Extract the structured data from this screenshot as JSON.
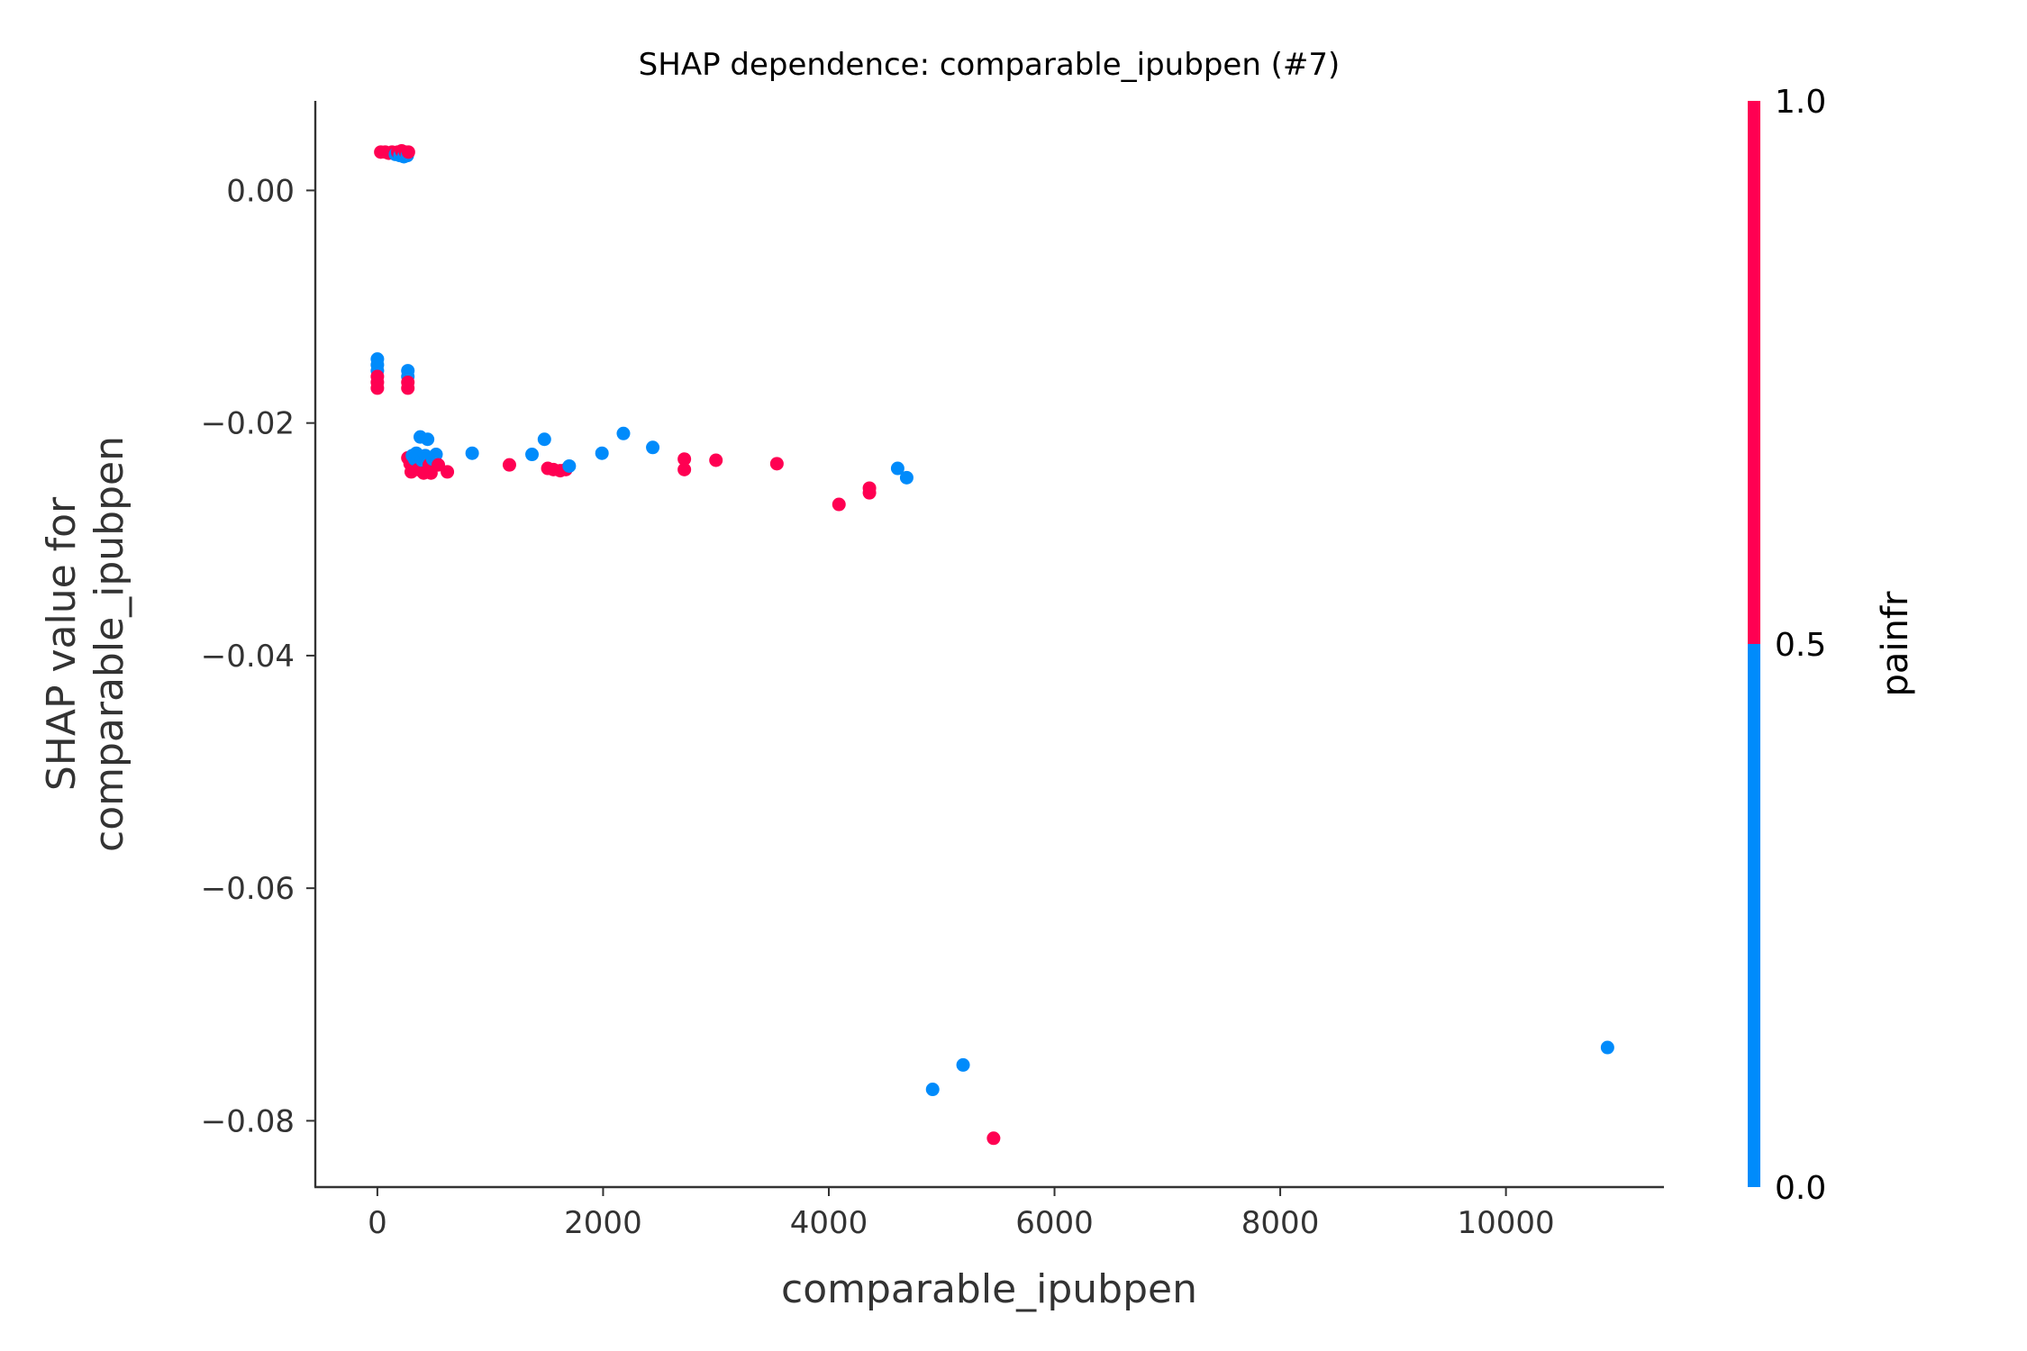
{
  "chart_data": {
    "type": "scatter",
    "title": "SHAP dependence: comparable_ipubpen (#7)",
    "xlabel": "comparable_ipubpen",
    "ylabel_lines": [
      "SHAP value for",
      "comparable_ipubpen"
    ],
    "xlim": [
      -550,
      11400
    ],
    "ylim": [
      -0.0857,
      0.0077
    ],
    "xticks": [
      0,
      2000,
      4000,
      6000,
      8000,
      10000
    ],
    "xtick_labels": [
      "0",
      "2000",
      "4000",
      "6000",
      "8000",
      "10000"
    ],
    "yticks": [
      0.0,
      -0.02,
      -0.04,
      -0.06,
      -0.08
    ],
    "ytick_labels": [
      "0.00",
      "−0.02",
      "−0.04",
      "−0.06",
      "−0.08"
    ],
    "grid": false,
    "colorbar": {
      "label": "painfr",
      "ticks": [
        0.0,
        0.5,
        1.0
      ],
      "tick_labels": [
        "0.0",
        "0.5",
        "1.0"
      ],
      "low_color": "#008bfb",
      "high_color": "#ff0052"
    },
    "points": [
      {
        "x": 30,
        "y": 0.0033,
        "c": 1
      },
      {
        "x": 70,
        "y": 0.0033,
        "c": 1
      },
      {
        "x": 100,
        "y": 0.0032,
        "c": 1
      },
      {
        "x": 130,
        "y": 0.0033,
        "c": 1
      },
      {
        "x": 160,
        "y": 0.0031,
        "c": 0
      },
      {
        "x": 180,
        "y": 0.0033,
        "c": 1
      },
      {
        "x": 200,
        "y": 0.003,
        "c": 0
      },
      {
        "x": 215,
        "y": 0.0034,
        "c": 1
      },
      {
        "x": 235,
        "y": 0.0029,
        "c": 0
      },
      {
        "x": 250,
        "y": 0.0033,
        "c": 1
      },
      {
        "x": 265,
        "y": 0.003,
        "c": 0
      },
      {
        "x": 275,
        "y": 0.0033,
        "c": 1
      },
      {
        "x": 0,
        "y": -0.0145,
        "c": 0
      },
      {
        "x": 0,
        "y": -0.015,
        "c": 0
      },
      {
        "x": 0,
        "y": -0.0155,
        "c": 0
      },
      {
        "x": 0,
        "y": -0.016,
        "c": 1
      },
      {
        "x": 0,
        "y": -0.0165,
        "c": 1
      },
      {
        "x": 0,
        "y": -0.017,
        "c": 1
      },
      {
        "x": 270,
        "y": -0.0155,
        "c": 0
      },
      {
        "x": 270,
        "y": -0.016,
        "c": 0
      },
      {
        "x": 270,
        "y": -0.0165,
        "c": 1
      },
      {
        "x": 270,
        "y": -0.017,
        "c": 1
      },
      {
        "x": 270,
        "y": -0.023,
        "c": 1
      },
      {
        "x": 290,
        "y": -0.0235,
        "c": 1
      },
      {
        "x": 300,
        "y": -0.0242,
        "c": 1
      },
      {
        "x": 310,
        "y": -0.0228,
        "c": 0
      },
      {
        "x": 330,
        "y": -0.0231,
        "c": 0
      },
      {
        "x": 345,
        "y": -0.0226,
        "c": 0
      },
      {
        "x": 360,
        "y": -0.024,
        "c": 1
      },
      {
        "x": 380,
        "y": -0.0212,
        "c": 0
      },
      {
        "x": 395,
        "y": -0.0232,
        "c": 0
      },
      {
        "x": 410,
        "y": -0.0243,
        "c": 1
      },
      {
        "x": 425,
        "y": -0.0228,
        "c": 0
      },
      {
        "x": 445,
        "y": -0.0214,
        "c": 0
      },
      {
        "x": 460,
        "y": -0.0236,
        "c": 1
      },
      {
        "x": 475,
        "y": -0.0243,
        "c": 1
      },
      {
        "x": 490,
        "y": -0.0231,
        "c": 0
      },
      {
        "x": 520,
        "y": -0.0227,
        "c": 0
      },
      {
        "x": 540,
        "y": -0.0236,
        "c": 1
      },
      {
        "x": 620,
        "y": -0.0242,
        "c": 1
      },
      {
        "x": 840,
        "y": -0.0226,
        "c": 0
      },
      {
        "x": 1170,
        "y": -0.0236,
        "c": 1
      },
      {
        "x": 1370,
        "y": -0.0227,
        "c": 0
      },
      {
        "x": 1480,
        "y": -0.0214,
        "c": 0
      },
      {
        "x": 1510,
        "y": -0.0239,
        "c": 1
      },
      {
        "x": 1560,
        "y": -0.024,
        "c": 1
      },
      {
        "x": 1620,
        "y": -0.0241,
        "c": 1
      },
      {
        "x": 1670,
        "y": -0.024,
        "c": 1
      },
      {
        "x": 1700,
        "y": -0.0237,
        "c": 0
      },
      {
        "x": 1990,
        "y": -0.0226,
        "c": 0
      },
      {
        "x": 2180,
        "y": -0.0209,
        "c": 0
      },
      {
        "x": 2440,
        "y": -0.0221,
        "c": 0
      },
      {
        "x": 2720,
        "y": -0.0231,
        "c": 1
      },
      {
        "x": 2720,
        "y": -0.024,
        "c": 1
      },
      {
        "x": 3000,
        "y": -0.0232,
        "c": 1
      },
      {
        "x": 3540,
        "y": -0.0235,
        "c": 1
      },
      {
        "x": 4090,
        "y": -0.027,
        "c": 1
      },
      {
        "x": 4360,
        "y": -0.0256,
        "c": 1
      },
      {
        "x": 4360,
        "y": -0.026,
        "c": 1
      },
      {
        "x": 4610,
        "y": -0.0239,
        "c": 0
      },
      {
        "x": 4690,
        "y": -0.0247,
        "c": 0
      },
      {
        "x": 4920,
        "y": -0.0773,
        "c": 0
      },
      {
        "x": 5190,
        "y": -0.0752,
        "c": 0
      },
      {
        "x": 5460,
        "y": -0.0815,
        "c": 1
      },
      {
        "x": 10900,
        "y": -0.0737,
        "c": 0
      }
    ]
  }
}
